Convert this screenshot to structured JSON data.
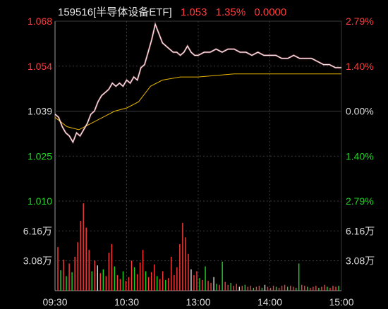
{
  "header": {
    "code_name": "159516[半导体设备ETF]",
    "price": "1.053",
    "change_pct": "1.35%",
    "extra": "0.0000"
  },
  "colors": {
    "up": "#ff3b3b",
    "down": "#1fd51f",
    "neutral": "#dddddd",
    "price_line": "#ffffff",
    "avg_line": "#e8b400",
    "grid": "#3a3a3a",
    "axis": "#9a9a9a"
  },
  "chart_data": [
    {
      "type": "line",
      "title": "",
      "y_left_labels": [
        "1.068",
        "1.054",
        "1.039",
        "1.025",
        "1.010"
      ],
      "y_right_labels": [
        "2.79%",
        "1.40%",
        "0.00%",
        "1.40%",
        "2.79%"
      ],
      "ylim": [
        1.01,
        1.068
      ],
      "x_labels": [
        "09:30",
        "10:30",
        "13:00",
        "14:00",
        "15:00"
      ],
      "series": [
        {
          "name": "",
          "points": [
            [
              "09:30",
              1.038
            ],
            [
              "09:33",
              1.037
            ],
            [
              "09:36",
              1.034
            ],
            [
              "09:39",
              1.032
            ],
            [
              "09:42",
              1.031
            ],
            [
              "09:45",
              1.029
            ],
            [
              "09:48",
              1.032
            ],
            [
              "09:51",
              1.031
            ],
            [
              "09:54",
              1.033
            ],
            [
              "09:57",
              1.035
            ],
            [
              "10:00",
              1.038
            ],
            [
              "10:03",
              1.039
            ],
            [
              "10:06",
              1.042
            ],
            [
              "10:09",
              1.044
            ],
            [
              "10:12",
              1.045
            ],
            [
              "10:15",
              1.046
            ],
            [
              "10:18",
              1.048
            ],
            [
              "10:21",
              1.047
            ],
            [
              "10:24",
              1.048
            ],
            [
              "10:27",
              1.047
            ],
            [
              "10:30",
              1.049
            ],
            [
              "10:33",
              1.048
            ],
            [
              "10:36",
              1.05
            ],
            [
              "10:39",
              1.049
            ],
            [
              "10:42",
              1.053
            ],
            [
              "10:45",
              1.054
            ],
            [
              "10:48",
              1.058
            ],
            [
              "10:51",
              1.062
            ],
            [
              "10:54",
              1.067
            ],
            [
              "10:57",
              1.064
            ],
            [
              "11:00",
              1.061
            ],
            [
              "11:03",
              1.06
            ],
            [
              "11:06",
              1.059
            ],
            [
              "11:09",
              1.058
            ],
            [
              "11:12",
              1.058
            ],
            [
              "11:15",
              1.057
            ],
            [
              "11:18",
              1.058
            ],
            [
              "11:21",
              1.06
            ],
            [
              "11:24",
              1.058
            ],
            [
              "11:27",
              1.057
            ],
            [
              "11:30",
              1.057
            ],
            [
              "13:00",
              1.057
            ],
            [
              "13:05",
              1.058
            ],
            [
              "13:10",
              1.058
            ],
            [
              "13:15",
              1.059
            ],
            [
              "13:20",
              1.058
            ],
            [
              "13:25",
              1.059
            ],
            [
              "13:30",
              1.059
            ],
            [
              "13:35",
              1.058
            ],
            [
              "13:40",
              1.058
            ],
            [
              "13:45",
              1.057
            ],
            [
              "13:50",
              1.058
            ],
            [
              "13:55",
              1.057
            ],
            [
              "14:00",
              1.057
            ],
            [
              "14:05",
              1.057
            ],
            [
              "14:10",
              1.056
            ],
            [
              "14:15",
              1.056
            ],
            [
              "14:20",
              1.057
            ],
            [
              "14:25",
              1.056
            ],
            [
              "14:30",
              1.056
            ],
            [
              "14:35",
              1.056
            ],
            [
              "14:40",
              1.055
            ],
            [
              "14:45",
              1.054
            ],
            [
              "14:50",
              1.054
            ],
            [
              "14:55",
              1.053
            ],
            [
              "15:00",
              1.053
            ]
          ]
        },
        {
          "name": "",
          "points": [
            [
              "09:30",
              1.037
            ],
            [
              "09:40",
              1.034
            ],
            [
              "09:50",
              1.033
            ],
            [
              "10:00",
              1.035
            ],
            [
              "10:10",
              1.037
            ],
            [
              "10:20",
              1.039
            ],
            [
              "10:30",
              1.04
            ],
            [
              "10:40",
              1.042
            ],
            [
              "10:50",
              1.047
            ],
            [
              "11:00",
              1.049
            ],
            [
              "11:15",
              1.05
            ],
            [
              "11:30",
              1.05
            ],
            [
              "13:00",
              1.05
            ],
            [
              "13:30",
              1.051
            ],
            [
              "14:00",
              1.051
            ],
            [
              "14:30",
              1.051
            ],
            [
              "15:00",
              1.051
            ]
          ]
        }
      ]
    },
    {
      "type": "bar",
      "title": "",
      "y_labels": [
        "6.16万",
        "3.08万"
      ],
      "ylim": [
        0,
        9.24
      ],
      "unit": "万",
      "x_labels": [
        "09:30",
        "10:30",
        "13:00",
        "14:00",
        "15:00"
      ],
      "bars": [
        [
          4.5,
          "up"
        ],
        [
          2.1,
          "down"
        ],
        [
          3.2,
          "up"
        ],
        [
          1.5,
          "down"
        ],
        [
          2.8,
          "up"
        ],
        [
          1.9,
          "down"
        ],
        [
          3.5,
          "up"
        ],
        [
          5.0,
          "up"
        ],
        [
          7.2,
          "up"
        ],
        [
          9.0,
          "up"
        ],
        [
          6.5,
          "up"
        ],
        [
          4.2,
          "up"
        ],
        [
          2.0,
          "down"
        ],
        [
          3.1,
          "up"
        ],
        [
          2.6,
          "neutral"
        ],
        [
          1.8,
          "up"
        ],
        [
          2.2,
          "down"
        ],
        [
          1.5,
          "up"
        ],
        [
          3.9,
          "up"
        ],
        [
          4.8,
          "up"
        ],
        [
          2.5,
          "down"
        ],
        [
          1.6,
          "up"
        ],
        [
          1.2,
          "up"
        ],
        [
          2.0,
          "down"
        ],
        [
          1.0,
          "up"
        ],
        [
          1.4,
          "up"
        ],
        [
          3.1,
          "up"
        ],
        [
          2.4,
          "down"
        ],
        [
          1.7,
          "up"
        ],
        [
          2.9,
          "up"
        ],
        [
          4.2,
          "up"
        ],
        [
          2.0,
          "down"
        ],
        [
          1.4,
          "up"
        ],
        [
          1.9,
          "up"
        ],
        [
          2.7,
          "up"
        ],
        [
          1.5,
          "down"
        ],
        [
          1.2,
          "up"
        ],
        [
          2.0,
          "up"
        ],
        [
          1.1,
          "down"
        ],
        [
          1.3,
          "up"
        ],
        [
          3.5,
          "up"
        ],
        [
          1.6,
          "up"
        ],
        [
          2.4,
          "up"
        ],
        [
          4.8,
          "up"
        ],
        [
          7.0,
          "up"
        ],
        [
          5.5,
          "up"
        ],
        [
          3.8,
          "up"
        ],
        [
          2.2,
          "neutral"
        ],
        [
          1.6,
          "up"
        ],
        [
          2.0,
          "up"
        ],
        [
          1.3,
          "down"
        ],
        [
          1.1,
          "up"
        ],
        [
          2.5,
          "down"
        ],
        [
          1.0,
          "up"
        ],
        [
          0.8,
          "up"
        ],
        [
          1.4,
          "neutral"
        ],
        [
          0.7,
          "down"
        ],
        [
          0.6,
          "up"
        ],
        [
          3.0,
          "down"
        ],
        [
          0.9,
          "up"
        ],
        [
          0.6,
          "up"
        ],
        [
          0.8,
          "down"
        ],
        [
          0.5,
          "up"
        ],
        [
          0.7,
          "up"
        ],
        [
          0.4,
          "neutral"
        ],
        [
          0.5,
          "up"
        ],
        [
          0.6,
          "down"
        ],
        [
          0.4,
          "up"
        ],
        [
          0.5,
          "up"
        ],
        [
          0.3,
          "down"
        ],
        [
          0.4,
          "up"
        ],
        [
          0.5,
          "up"
        ],
        [
          0.3,
          "down"
        ],
        [
          0.6,
          "neutral"
        ],
        [
          0.4,
          "up"
        ],
        [
          0.3,
          "up"
        ],
        [
          0.5,
          "up"
        ],
        [
          0.4,
          "down"
        ],
        [
          0.3,
          "up"
        ],
        [
          0.5,
          "up"
        ],
        [
          0.6,
          "up"
        ],
        [
          0.4,
          "down"
        ],
        [
          0.5,
          "up"
        ],
        [
          0.4,
          "up"
        ],
        [
          0.3,
          "down"
        ],
        [
          2.8,
          "down"
        ],
        [
          0.6,
          "up"
        ],
        [
          0.5,
          "up"
        ],
        [
          0.4,
          "down"
        ],
        [
          0.3,
          "up"
        ],
        [
          0.4,
          "up"
        ],
        [
          0.5,
          "up"
        ],
        [
          0.3,
          "down"
        ],
        [
          0.4,
          "up"
        ],
        [
          0.6,
          "up"
        ],
        [
          0.4,
          "down"
        ],
        [
          0.3,
          "up"
        ],
        [
          0.5,
          "up"
        ],
        [
          0.4,
          "up"
        ],
        [
          0.5,
          "down"
        ]
      ]
    }
  ]
}
